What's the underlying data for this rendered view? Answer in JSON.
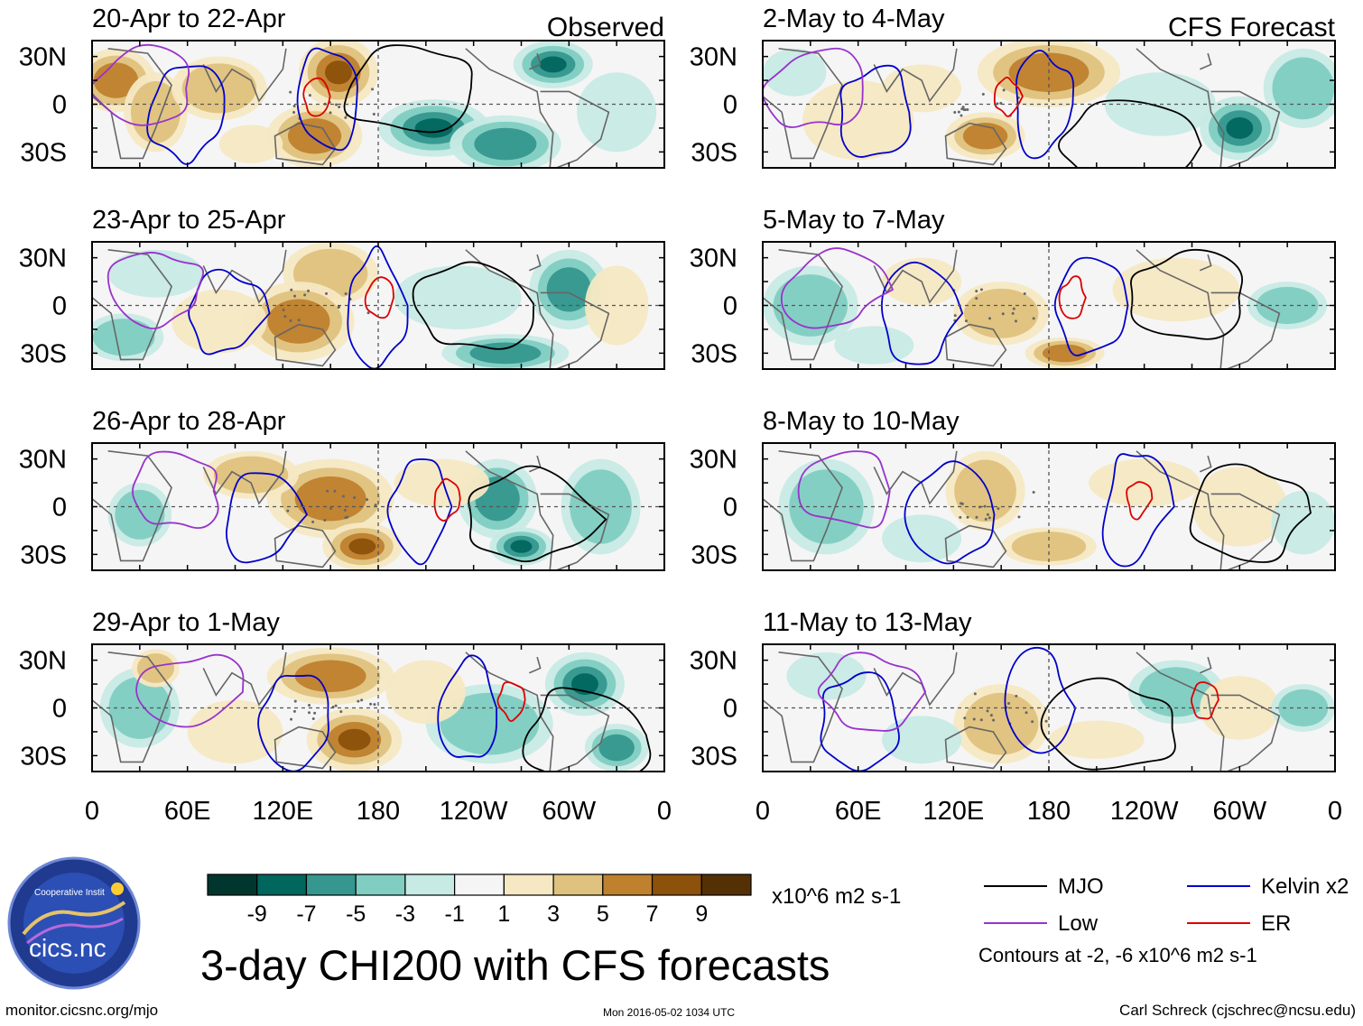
{
  "chart_data": {
    "type": "heatmap",
    "title": "3-day CHI200 with CFS forecasts",
    "variable": "CHI200",
    "units": "x10^6 m2 s-1",
    "column_labels": [
      "Observed",
      "CFS Forecast"
    ],
    "panels": [
      {
        "period": "20-Apr to 22-Apr",
        "column": "Observed"
      },
      {
        "period": "23-Apr to 25-Apr",
        "column": "Observed"
      },
      {
        "period": "26-Apr to 28-Apr",
        "column": "Observed"
      },
      {
        "period": "29-Apr to 1-May",
        "column": "Observed"
      },
      {
        "period": "2-May to 4-May",
        "column": "CFS Forecast"
      },
      {
        "period": "5-May to 7-May",
        "column": "CFS Forecast"
      },
      {
        "period": "8-May to 10-May",
        "column": "CFS Forecast"
      },
      {
        "period": "11-May to 13-May",
        "column": "CFS Forecast"
      }
    ],
    "x_ticks": [
      "0",
      "60E",
      "120E",
      "180",
      "120W",
      "60W",
      "0"
    ],
    "x_tick_values": [
      0,
      60,
      120,
      180,
      240,
      300,
      360
    ],
    "y_ticks": [
      "30N",
      "0",
      "30S"
    ],
    "y_tick_values": [
      30,
      0,
      -30
    ],
    "ylim": [
      -40,
      40
    ],
    "xlim": [
      0,
      360
    ],
    "colorbar": {
      "labels": [
        "-9",
        "-7",
        "-5",
        "-3",
        "-1",
        "1",
        "3",
        "5",
        "7",
        "9"
      ],
      "colors": [
        "#01362e",
        "#01665e",
        "#35978f",
        "#80cdc1",
        "#c7eae5",
        "#f5f5f5",
        "#f6e8c3",
        "#dfc27d",
        "#bf812d",
        "#8c510a",
        "#543005"
      ]
    },
    "contours": [
      {
        "name": "MJO",
        "color": "#000000"
      },
      {
        "name": "Kelvin x2",
        "color": "#0000cc"
      },
      {
        "name": "Low",
        "color": "#9933cc"
      },
      {
        "name": "ER",
        "color": "#dd0000"
      }
    ],
    "contour_note": "Contours at -2, -6 x10^6 m2 s-1"
  },
  "branding": {
    "logo_text": "cics.nc",
    "logo_ring_text": "Cooperative Institute for Climate and Satellites"
  },
  "footer": {
    "url": "monitor.cicsnc.org/mjo",
    "timestamp": "Mon 2016-05-02 1034 UTC",
    "author": "Carl Schreck (cjschrec@ncsu.edu)"
  }
}
